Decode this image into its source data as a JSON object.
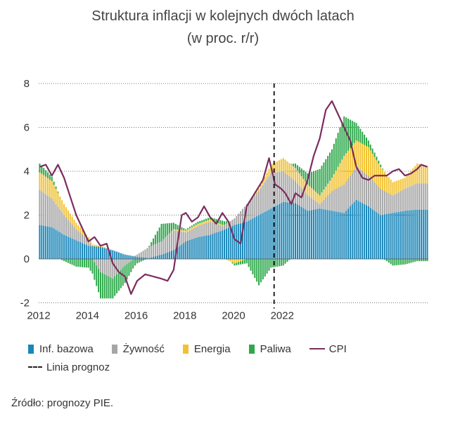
{
  "title_line1": "Struktura inflacji w kolejnych dwóch latach",
  "title_line2": "(w proc. r/r)",
  "source": "Źródło: prognozy PIE.",
  "chart_data": {
    "type": "bar",
    "stacked": true,
    "ylim": [
      -2,
      8
    ],
    "yticks": [
      "8",
      "6",
      "4",
      "2",
      "0",
      "-2"
    ],
    "xticks": [
      "2012",
      "2014",
      "2016",
      "2018",
      "2020",
      "2022"
    ],
    "forecast_line_at": "2021-09",
    "grid": "horizontal dotted",
    "legend_position": "bottom",
    "colors": {
      "core": "#1a86b8",
      "food": "#a6a6a6",
      "energy": "#f1c232",
      "fuel": "#2ea84b",
      "cpi": "#7b2d5e"
    },
    "legend": [
      {
        "key": "core",
        "label": "Inf. bazowa"
      },
      {
        "key": "food",
        "label": "Żywność"
      },
      {
        "key": "energy",
        "label": "Energia"
      },
      {
        "key": "fuel",
        "label": "Paliwa"
      },
      {
        "key": "cpi",
        "label": "CPI"
      },
      {
        "key": "forecast",
        "label": "Linia prognoz"
      }
    ],
    "x_start": "2012-01",
    "anchors": {
      "core": [
        [
          0,
          1.55
        ],
        [
          6,
          1.45
        ],
        [
          12,
          1.1
        ],
        [
          18,
          0.85
        ],
        [
          24,
          0.6
        ],
        [
          30,
          0.55
        ],
        [
          36,
          0.4
        ],
        [
          42,
          0.2
        ],
        [
          48,
          0.1
        ],
        [
          54,
          0.05
        ],
        [
          60,
          0.2
        ],
        [
          66,
          0.4
        ],
        [
          72,
          0.8
        ],
        [
          78,
          1.0
        ],
        [
          84,
          1.1
        ],
        [
          90,
          1.3
        ],
        [
          96,
          1.55
        ],
        [
          102,
          1.7
        ],
        [
          108,
          2.0
        ],
        [
          114,
          2.3
        ],
        [
          120,
          2.6
        ],
        [
          126,
          2.55
        ],
        [
          132,
          2.2
        ],
        [
          138,
          2.3
        ],
        [
          144,
          2.2
        ],
        [
          150,
          2.1
        ],
        [
          156,
          2.7
        ],
        [
          162,
          2.4
        ],
        [
          168,
          2.0
        ],
        [
          174,
          2.1
        ],
        [
          180,
          2.2
        ],
        [
          186,
          2.25
        ],
        [
          191,
          2.25
        ]
      ],
      "food": [
        [
          0,
          1.6
        ],
        [
          6,
          1.3
        ],
        [
          12,
          0.9
        ],
        [
          18,
          0.5
        ],
        [
          24,
          0.3
        ],
        [
          30,
          -0.6
        ],
        [
          36,
          -0.9
        ],
        [
          42,
          -0.3
        ],
        [
          48,
          0.1
        ],
        [
          54,
          0.5
        ],
        [
          60,
          0.6
        ],
        [
          66,
          0.9
        ],
        [
          72,
          0.4
        ],
        [
          78,
          0.5
        ],
        [
          84,
          0.6
        ],
        [
          90,
          0.2
        ],
        [
          96,
          0.3
        ],
        [
          102,
          0.8
        ],
        [
          108,
          1.1
        ],
        [
          114,
          1.6
        ],
        [
          120,
          1.4
        ],
        [
          126,
          1.0
        ],
        [
          132,
          0.7
        ],
        [
          138,
          0.2
        ],
        [
          144,
          0.9
        ],
        [
          150,
          1.3
        ],
        [
          156,
          1.5
        ],
        [
          162,
          1.4
        ],
        [
          168,
          1.2
        ],
        [
          174,
          0.8
        ],
        [
          180,
          1.0
        ],
        [
          186,
          1.2
        ],
        [
          191,
          1.2
        ]
      ],
      "energy": [
        [
          0,
          0.8
        ],
        [
          6,
          0.8
        ],
        [
          12,
          0.5
        ],
        [
          18,
          0.3
        ],
        [
          24,
          0.1
        ],
        [
          30,
          0.05
        ],
        [
          36,
          0
        ],
        [
          42,
          0
        ],
        [
          48,
          0
        ],
        [
          54,
          0
        ],
        [
          60,
          0
        ],
        [
          66,
          0.05
        ],
        [
          72,
          0.1
        ],
        [
          78,
          0.1
        ],
        [
          84,
          0.1
        ],
        [
          90,
          0.05
        ],
        [
          96,
          -0.2
        ],
        [
          102,
          0
        ],
        [
          108,
          0.1
        ],
        [
          114,
          0.4
        ],
        [
          120,
          0.6
        ],
        [
          126,
          0.6
        ],
        [
          132,
          0.5
        ],
        [
          138,
          0.4
        ],
        [
          144,
          0.6
        ],
        [
          150,
          1.3
        ],
        [
          156,
          1.2
        ],
        [
          162,
          1.3
        ],
        [
          168,
          1.0
        ],
        [
          174,
          0.6
        ],
        [
          180,
          0.5
        ],
        [
          186,
          0.9
        ],
        [
          191,
          0.8
        ]
      ],
      "fuel": [
        [
          0,
          0.4
        ],
        [
          6,
          0.2
        ],
        [
          12,
          -0.1
        ],
        [
          18,
          -0.35
        ],
        [
          24,
          -0.4
        ],
        [
          30,
          -1.2
        ],
        [
          36,
          -0.9
        ],
        [
          42,
          -0.8
        ],
        [
          48,
          -0.2
        ],
        [
          54,
          0.05
        ],
        [
          60,
          0.8
        ],
        [
          66,
          0.3
        ],
        [
          72,
          0.05
        ],
        [
          78,
          0.1
        ],
        [
          84,
          0.1
        ],
        [
          90,
          0.2
        ],
        [
          96,
          -0.1
        ],
        [
          102,
          -0.2
        ],
        [
          108,
          -1.2
        ],
        [
          114,
          -0.4
        ],
        [
          120,
          -0.3
        ],
        [
          126,
          0.2
        ],
        [
          132,
          0.5
        ],
        [
          138,
          1.2
        ],
        [
          144,
          1.3
        ],
        [
          150,
          1.8
        ],
        [
          156,
          0.8
        ],
        [
          162,
          0.3
        ],
        [
          168,
          0.1
        ],
        [
          174,
          -0.3
        ],
        [
          180,
          -0.25
        ],
        [
          186,
          -0.1
        ],
        [
          191,
          -0.1
        ]
      ],
      "cpi": [
        [
          0,
          4.2
        ],
        [
          3,
          4.3
        ],
        [
          6,
          3.8
        ],
        [
          9,
          4.3
        ],
        [
          12,
          3.7
        ],
        [
          18,
          2.0
        ],
        [
          24,
          0.8
        ],
        [
          27,
          1.0
        ],
        [
          30,
          0.6
        ],
        [
          33,
          0.7
        ],
        [
          36,
          -0.2
        ],
        [
          39,
          -0.6
        ],
        [
          42,
          -0.8
        ],
        [
          45,
          -1.6
        ],
        [
          48,
          -1.0
        ],
        [
          52,
          -0.7
        ],
        [
          56,
          -0.8
        ],
        [
          60,
          -0.9
        ],
        [
          63,
          -1.0
        ],
        [
          66,
          -0.5
        ],
        [
          68,
          0.8
        ],
        [
          70,
          2.0
        ],
        [
          72,
          2.1
        ],
        [
          75,
          1.7
        ],
        [
          78,
          1.9
        ],
        [
          81,
          2.4
        ],
        [
          84,
          1.9
        ],
        [
          87,
          1.6
        ],
        [
          90,
          2.1
        ],
        [
          93,
          1.7
        ],
        [
          96,
          0.9
        ],
        [
          99,
          0.7
        ],
        [
          102,
          2.4
        ],
        [
          106,
          3.0
        ],
        [
          110,
          3.6
        ],
        [
          113,
          4.6
        ],
        [
          116,
          3.4
        ],
        [
          119,
          3.2
        ],
        [
          121,
          3.0
        ],
        [
          124,
          2.5
        ],
        [
          126,
          3.0
        ],
        [
          129,
          2.8
        ],
        [
          132,
          3.6
        ],
        [
          135,
          4.7
        ],
        [
          138,
          5.5
        ],
        [
          141,
          6.8
        ],
        [
          144,
          7.2
        ],
        [
          150,
          6.0
        ],
        [
          153,
          5.4
        ],
        [
          156,
          4.2
        ],
        [
          159,
          3.7
        ],
        [
          162,
          3.6
        ],
        [
          165,
          3.8
        ],
        [
          171,
          3.8
        ],
        [
          174,
          4.0
        ],
        [
          177,
          4.1
        ],
        [
          180,
          3.8
        ],
        [
          183,
          3.9
        ],
        [
          186,
          4.1
        ],
        [
          188,
          4.3
        ],
        [
          191,
          4.2
        ]
      ]
    }
  }
}
